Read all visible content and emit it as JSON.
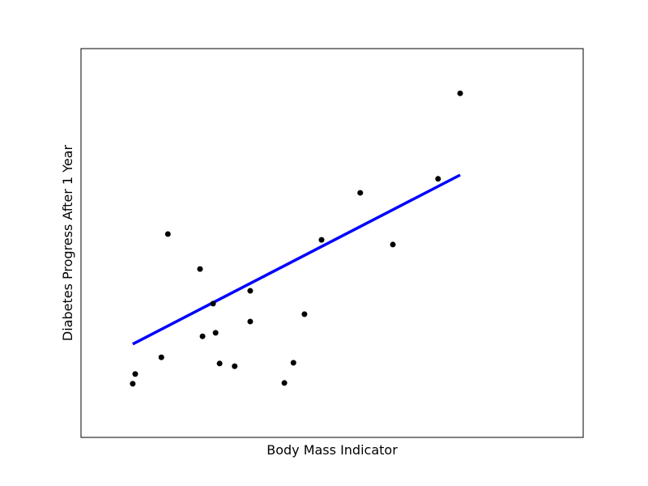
{
  "chart_data": {
    "type": "scatter",
    "xlabel": "Body Mass Indicator",
    "ylabel": "Diabetes Progress After 1 Year",
    "grid": false,
    "xlim": [
      0.0,
      1.0
    ],
    "ylim": [
      0.0,
      1.0
    ],
    "colors": {
      "points": "#000000",
      "fit_line": "#0000ff",
      "axes": "#000000"
    },
    "points": [
      {
        "x": 0.103,
        "y": 0.138
      },
      {
        "x": 0.108,
        "y": 0.163
      },
      {
        "x": 0.16,
        "y": 0.206
      },
      {
        "x": 0.173,
        "y": 0.523
      },
      {
        "x": 0.237,
        "y": 0.433
      },
      {
        "x": 0.242,
        "y": 0.26
      },
      {
        "x": 0.263,
        "y": 0.344
      },
      {
        "x": 0.268,
        "y": 0.269
      },
      {
        "x": 0.276,
        "y": 0.19
      },
      {
        "x": 0.306,
        "y": 0.183
      },
      {
        "x": 0.337,
        "y": 0.377
      },
      {
        "x": 0.337,
        "y": 0.298
      },
      {
        "x": 0.405,
        "y": 0.14
      },
      {
        "x": 0.423,
        "y": 0.192
      },
      {
        "x": 0.445,
        "y": 0.317
      },
      {
        "x": 0.479,
        "y": 0.508
      },
      {
        "x": 0.556,
        "y": 0.629
      },
      {
        "x": 0.621,
        "y": 0.496
      },
      {
        "x": 0.711,
        "y": 0.665
      },
      {
        "x": 0.755,
        "y": 0.885
      }
    ],
    "fit_line": {
      "x": [
        0.103,
        0.755
      ],
      "y": [
        0.24,
        0.675
      ]
    }
  }
}
